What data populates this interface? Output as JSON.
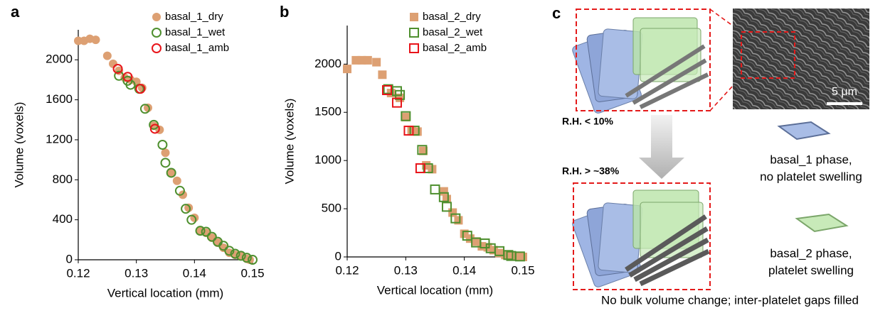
{
  "chart_data": [
    {
      "type": "scatter",
      "panel_label": "a",
      "x_label": "Vertical location (mm)",
      "y_label": "Volume (voxels)",
      "xlim": [
        0.12,
        0.15
      ],
      "xticks": [
        0.12,
        0.13,
        0.14,
        0.15
      ],
      "ylim": [
        0,
        2300
      ],
      "yticks": [
        0,
        400,
        800,
        1200,
        1600,
        2000
      ],
      "legend": "upper right",
      "marker": "circle",
      "series": [
        {
          "name": "basal_1_dry",
          "color": "#dda073",
          "filled": true,
          "x": [
            0.12,
            0.121,
            0.122,
            0.123,
            0.125,
            0.126,
            0.127,
            0.128,
            0.129,
            0.13,
            0.131,
            0.132,
            0.133,
            0.134,
            0.135,
            0.136,
            0.137,
            0.138,
            0.139,
            0.14,
            0.141,
            0.142,
            0.143,
            0.144,
            0.145,
            0.146,
            0.147,
            0.148,
            0.149,
            0.1495
          ],
          "values": [
            2190,
            2190,
            2210,
            2200,
            2040,
            1960,
            1890,
            1820,
            1800,
            1780,
            1720,
            1520,
            1340,
            1300,
            1070,
            870,
            790,
            650,
            520,
            420,
            290,
            270,
            220,
            170,
            120,
            70,
            50,
            40,
            10,
            0
          ]
        },
        {
          "name": "basal_1_wet",
          "color": "#4e8f2e",
          "filled": false,
          "x": [
            0.127,
            0.1285,
            0.129,
            0.1305,
            0.1315,
            0.133,
            0.1345,
            0.135,
            0.136,
            0.1375,
            0.1385,
            0.1395,
            0.141,
            0.142,
            0.143,
            0.144,
            0.145,
            0.146,
            0.147,
            0.148,
            0.149,
            0.15
          ],
          "values": [
            1840,
            1790,
            1750,
            1710,
            1510,
            1350,
            1150,
            970,
            870,
            690,
            510,
            400,
            290,
            280,
            230,
            180,
            140,
            90,
            60,
            40,
            20,
            0
          ]
        },
        {
          "name": "basal_1_amb",
          "color": "#e8141a",
          "filled": false,
          "x": [
            0.1268,
            0.1285,
            0.1307,
            0.1332
          ],
          "values": [
            1910,
            1830,
            1710,
            1310
          ]
        }
      ]
    },
    {
      "type": "scatter",
      "panel_label": "b",
      "x_label": "Vertical location (mm)",
      "y_label": "Volume (voxels)",
      "xlim": [
        0.12,
        0.15
      ],
      "xticks": [
        0.12,
        0.13,
        0.14,
        0.15
      ],
      "ylim": [
        0,
        2400
      ],
      "yticks": [
        0,
        500,
        1000,
        1500,
        2000
      ],
      "legend": "upper right",
      "marker": "square",
      "series": [
        {
          "name": "basal_2_dry",
          "color": "#dda073",
          "filled": true,
          "x": [
            0.12,
            0.1215,
            0.1225,
            0.1235,
            0.125,
            0.126,
            0.1275,
            0.129,
            0.13,
            0.131,
            0.132,
            0.133,
            0.1335,
            0.1345,
            0.1365,
            0.137,
            0.138,
            0.139,
            0.14,
            0.141,
            0.142,
            0.143,
            0.144,
            0.145,
            0.146,
            0.147,
            0.148,
            0.149,
            0.15
          ],
          "values": [
            1950,
            2040,
            2040,
            2040,
            2020,
            1890,
            1700,
            1650,
            1450,
            1310,
            1300,
            1100,
            950,
            910,
            680,
            600,
            460,
            380,
            240,
            190,
            160,
            110,
            100,
            70,
            40,
            20,
            10,
            5,
            0
          ]
        },
        {
          "name": "basal_2_wet",
          "color": "#4e8f2e",
          "filled": false,
          "x": [
            0.127,
            0.1285,
            0.129,
            0.13,
            0.1315,
            0.1328,
            0.1338,
            0.135,
            0.1365,
            0.137,
            0.1385,
            0.1405,
            0.142,
            0.1435,
            0.1445,
            0.146,
            0.1475,
            0.148,
            0.1495
          ],
          "values": [
            1740,
            1720,
            1680,
            1460,
            1310,
            1110,
            920,
            700,
            620,
            520,
            400,
            220,
            150,
            140,
            90,
            60,
            20,
            10,
            5
          ]
        },
        {
          "name": "basal_2_amb",
          "color": "#e8141a",
          "filled": false,
          "x": [
            0.1268,
            0.1285,
            0.1305,
            0.1325
          ],
          "values": [
            1730,
            1600,
            1310,
            920
          ]
        }
      ]
    }
  ],
  "diagram": {
    "panel_label": "c",
    "scale_bar": "5 μm",
    "condition_dry": "R.H. < 10%",
    "condition_wet": "R.H. > ~38%",
    "basal_1_line1": "basal_1 phase,",
    "basal_1_line2": "no platelet swelling",
    "basal_2_line1": "basal_2 phase,",
    "basal_2_line2": "platelet swelling",
    "caption": "No bulk volume change; inter-platelet gaps filled"
  }
}
